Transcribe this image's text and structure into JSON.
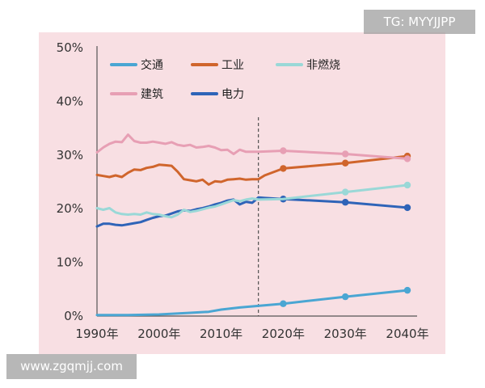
{
  "watermarks": {
    "top": "TG: MYYJJPP",
    "bottom": "www.zgqmjj.com"
  },
  "colors": {
    "panel_background": "#f8dfe3",
    "transport": "#4aa6d3",
    "industry": "#d0652c",
    "non_combustion": "#9ad8d7",
    "building": "#e79fb4",
    "electricity": "#2f64b8"
  },
  "chart_data": {
    "type": "line",
    "title": "",
    "xlabel": "",
    "ylabel": "",
    "xlim": [
      1990,
      2040
    ],
    "ylim": [
      0,
      50
    ],
    "grid": false,
    "legend_position": "top-left",
    "x_ticks": [
      "1990年",
      "2000年",
      "2010年",
      "2020年",
      "2030年",
      "2040年"
    ],
    "y_ticks": [
      "0%",
      "10%",
      "20%",
      "30%",
      "40%",
      "50%"
    ],
    "reference_line": {
      "x": 2016,
      "style": "dashed"
    },
    "series": [
      {
        "name": "交通",
        "color_key": "transport",
        "values": [
          [
            1990,
            0.2
          ],
          [
            1995,
            0.2
          ],
          [
            2000,
            0.3
          ],
          [
            2005,
            0.6
          ],
          [
            2008,
            0.8
          ],
          [
            2010,
            1.2
          ],
          [
            2013,
            1.6
          ],
          [
            2016,
            1.9
          ],
          [
            2020,
            2.3
          ],
          [
            2030,
            3.6
          ],
          [
            2040,
            4.8
          ]
        ],
        "markers": [
          [
            2020,
            2.3
          ],
          [
            2030,
            3.6
          ],
          [
            2040,
            4.8
          ]
        ]
      },
      {
        "name": "工业",
        "color_key": "industry",
        "values": [
          [
            1990,
            26.3
          ],
          [
            1991,
            26.1
          ],
          [
            1992,
            25.9
          ],
          [
            1993,
            26.2
          ],
          [
            1994,
            25.9
          ],
          [
            1995,
            26.7
          ],
          [
            1996,
            27.3
          ],
          [
            1997,
            27.2
          ],
          [
            1998,
            27.6
          ],
          [
            1999,
            27.8
          ],
          [
            2000,
            28.2
          ],
          [
            2001,
            28.1
          ],
          [
            2002,
            28.0
          ],
          [
            2003,
            26.9
          ],
          [
            2004,
            25.5
          ],
          [
            2005,
            25.3
          ],
          [
            2006,
            25.1
          ],
          [
            2007,
            25.4
          ],
          [
            2008,
            24.5
          ],
          [
            2009,
            25.1
          ],
          [
            2010,
            25.0
          ],
          [
            2011,
            25.4
          ],
          [
            2012,
            25.5
          ],
          [
            2013,
            25.6
          ],
          [
            2014,
            25.4
          ],
          [
            2015,
            25.5
          ],
          [
            2016,
            25.5
          ],
          [
            2017,
            26.2
          ],
          [
            2020,
            27.5
          ],
          [
            2030,
            28.5
          ],
          [
            2040,
            29.8
          ]
        ],
        "markers": [
          [
            2020,
            27.5
          ],
          [
            2030,
            28.5
          ],
          [
            2040,
            29.8
          ]
        ]
      },
      {
        "name": "非燃烧",
        "color_key": "non_combustion",
        "values": [
          [
            1990,
            20.1
          ],
          [
            1991,
            19.8
          ],
          [
            1992,
            20.1
          ],
          [
            1993,
            19.3
          ],
          [
            1994,
            19.0
          ],
          [
            1995,
            18.9
          ],
          [
            1996,
            19.0
          ],
          [
            1997,
            18.9
          ],
          [
            1998,
            19.3
          ],
          [
            1999,
            19.0
          ],
          [
            2000,
            18.9
          ],
          [
            2001,
            18.6
          ],
          [
            2002,
            18.4
          ],
          [
            2003,
            18.9
          ],
          [
            2004,
            19.8
          ],
          [
            2005,
            19.4
          ],
          [
            2006,
            19.6
          ],
          [
            2007,
            19.9
          ],
          [
            2008,
            20.2
          ],
          [
            2009,
            20.4
          ],
          [
            2010,
            20.8
          ],
          [
            2011,
            21.2
          ],
          [
            2012,
            21.6
          ],
          [
            2013,
            21.4
          ],
          [
            2014,
            21.7
          ],
          [
            2015,
            21.9
          ],
          [
            2016,
            21.7
          ],
          [
            2020,
            21.8
          ],
          [
            2030,
            23.1
          ],
          [
            2040,
            24.4
          ]
        ],
        "markers": [
          [
            2030,
            23.1
          ],
          [
            2040,
            24.4
          ]
        ]
      },
      {
        "name": "建筑",
        "color_key": "building",
        "values": [
          [
            1990,
            30.5
          ],
          [
            1991,
            31.4
          ],
          [
            1992,
            32.1
          ],
          [
            1993,
            32.5
          ],
          [
            1994,
            32.4
          ],
          [
            1995,
            33.8
          ],
          [
            1996,
            32.6
          ],
          [
            1997,
            32.3
          ],
          [
            1998,
            32.3
          ],
          [
            1999,
            32.5
          ],
          [
            2000,
            32.3
          ],
          [
            2001,
            32.1
          ],
          [
            2002,
            32.4
          ],
          [
            2003,
            31.9
          ],
          [
            2004,
            31.7
          ],
          [
            2005,
            31.9
          ],
          [
            2006,
            31.4
          ],
          [
            2007,
            31.5
          ],
          [
            2008,
            31.7
          ],
          [
            2009,
            31.4
          ],
          [
            2010,
            30.9
          ],
          [
            2011,
            31.0
          ],
          [
            2012,
            30.2
          ],
          [
            2013,
            31.0
          ],
          [
            2014,
            30.6
          ],
          [
            2015,
            30.6
          ],
          [
            2016,
            30.6
          ],
          [
            2020,
            30.8
          ],
          [
            2030,
            30.2
          ],
          [
            2040,
            29.3
          ]
        ],
        "markers": [
          [
            2020,
            30.8
          ],
          [
            2030,
            30.2
          ],
          [
            2040,
            29.3
          ]
        ]
      },
      {
        "name": "电力",
        "color_key": "electricity",
        "values": [
          [
            1990,
            16.7
          ],
          [
            1991,
            17.2
          ],
          [
            1992,
            17.2
          ],
          [
            1993,
            17.0
          ],
          [
            1994,
            16.9
          ],
          [
            1995,
            17.1
          ],
          [
            1996,
            17.3
          ],
          [
            1997,
            17.5
          ],
          [
            1998,
            17.9
          ],
          [
            1999,
            18.3
          ],
          [
            2000,
            18.6
          ],
          [
            2001,
            18.7
          ],
          [
            2002,
            19.1
          ],
          [
            2003,
            19.5
          ],
          [
            2004,
            19.7
          ],
          [
            2005,
            19.6
          ],
          [
            2006,
            19.9
          ],
          [
            2007,
            20.1
          ],
          [
            2008,
            20.4
          ],
          [
            2009,
            20.8
          ],
          [
            2010,
            21.1
          ],
          [
            2011,
            21.5
          ],
          [
            2012,
            21.7
          ],
          [
            2013,
            20.8
          ],
          [
            2014,
            21.3
          ],
          [
            2015,
            21.1
          ],
          [
            2016,
            22.1
          ],
          [
            2017,
            22.0
          ],
          [
            2020,
            21.8
          ],
          [
            2030,
            21.2
          ],
          [
            2040,
            20.2
          ]
        ],
        "markers": [
          [
            2020,
            21.8
          ],
          [
            2030,
            21.2
          ],
          [
            2040,
            20.2
          ]
        ]
      }
    ]
  }
}
